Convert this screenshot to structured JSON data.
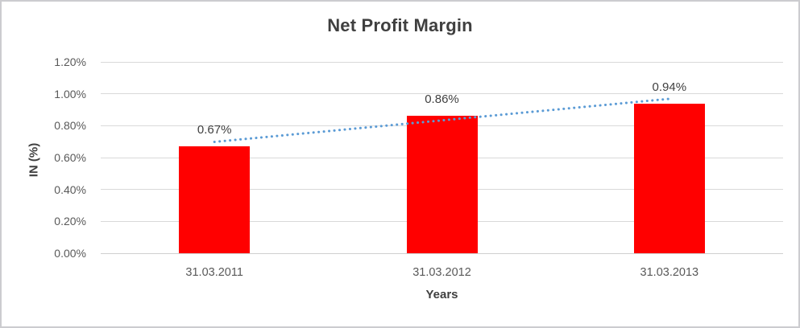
{
  "frame": {
    "background": "#ffffff",
    "border_color": "#cccccf"
  },
  "chart_data": {
    "type": "bar",
    "title": "Net Profit Margin",
    "xlabel": "Years",
    "ylabel": "IN (%)",
    "categories": [
      "31.03.2011",
      "31.03.2012",
      "31.03.2013"
    ],
    "values": [
      0.67,
      0.86,
      0.94
    ],
    "data_labels": [
      "0.67%",
      "0.86%",
      "0.94%"
    ],
    "y_tick_labels": [
      "0.00%",
      "0.20%",
      "0.40%",
      "0.60%",
      "0.80%",
      "1.00%",
      "1.20%"
    ],
    "ylim": [
      0,
      1.2
    ],
    "grid": true,
    "legend": "none",
    "bar_color": "#ff0000",
    "gridline_color": "#d9d9d9",
    "trendline": {
      "type": "linear",
      "style": "dotted",
      "color": "#5b9bd5"
    }
  }
}
